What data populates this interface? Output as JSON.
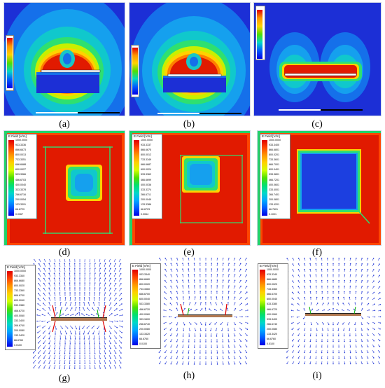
{
  "captions": [
    "(a)",
    "(b)",
    "(c)",
    "(d)",
    "(e)",
    "(f)",
    "(g)",
    "(h)",
    "(i)"
  ],
  "legend_title": "E Field [V/m]",
  "legend_colors": [
    "#e10000",
    "#ff4600",
    "#ff9600",
    "#ffd200",
    "#d2ff00",
    "#4ee000",
    "#00e072",
    "#00d8c8",
    "#00a8ff",
    "#005aff",
    "#0000e6"
  ],
  "legends": {
    "d": [
      "1000.0000",
      "933.3336",
      "866.6673",
      "800.0013",
      "733.3351",
      "666.6688",
      "600.0027",
      "533.3366",
      "466.6703",
      "400.0040",
      "333.3378",
      "266.6716",
      "200.0054",
      "133.3391",
      "66.6729",
      "0.0067"
    ],
    "e": [
      "1000.0000",
      "933.3337",
      "866.6675",
      "800.0012",
      "733.3349",
      "666.6687",
      "600.0024",
      "533.3362",
      "466.6699",
      "400.0036",
      "333.3374",
      "266.6711",
      "200.0049",
      "133.3386",
      "66.6723",
      "0.0064"
    ],
    "f": [
      "1000.0000",
      "933.3400",
      "866.6801",
      "800.0201",
      "733.3601",
      "666.7001",
      "600.0401",
      "533.3801",
      "466.7201",
      "400.0601",
      "333.4001",
      "266.7401",
      "200.0801",
      "133.4201",
      "66.7601",
      "0.1001"
    ],
    "g": [
      "1000.0000",
      "933.3340",
      "866.6680",
      "800.0020",
      "733.3360",
      "666.6700",
      "600.0040",
      "533.3380",
      "466.6720",
      "400.0060",
      "333.3400",
      "266.6740",
      "200.0080",
      "133.3420",
      "66.6760",
      "0.0100"
    ],
    "h": [
      "1000.0000",
      "933.3340",
      "866.6680",
      "800.0020",
      "733.3360",
      "666.6700",
      "600.0040",
      "533.3380",
      "466.6720",
      "400.0060",
      "333.3400",
      "266.6740",
      "200.0080",
      "133.3420",
      "66.6760",
      "0.0100"
    ],
    "i": [
      "1000.0000",
      "933.3340",
      "866.6680",
      "800.0020",
      "733.3360",
      "666.6700",
      "600.0040",
      "533.3380",
      "466.6720",
      "400.0060",
      "333.3400",
      "266.6740",
      "200.0080",
      "133.3420",
      "66.6760",
      "0.0100"
    ]
  }
}
